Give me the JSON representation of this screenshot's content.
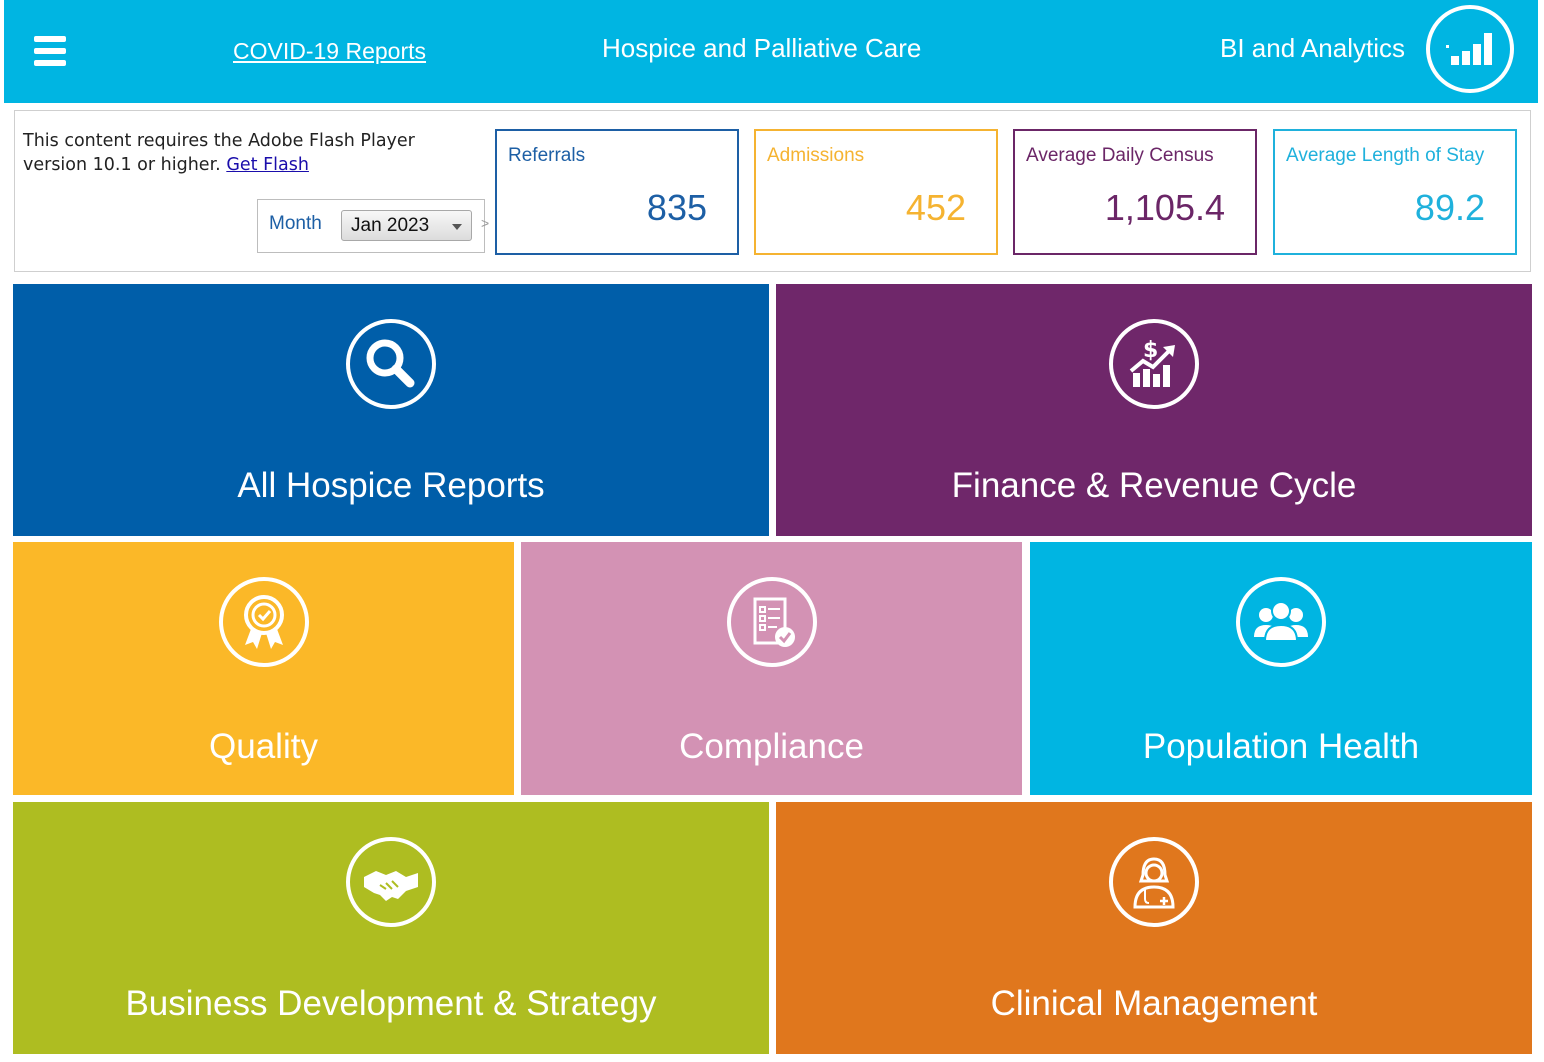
{
  "header": {
    "covid_link": "COVID-19 Reports",
    "title": "Hospice and Palliative Care",
    "bi_label": "BI and Analytics"
  },
  "flash": {
    "message": "This content requires the Adobe Flash Player version 10.1 or higher.",
    "link": "Get Flash"
  },
  "filter": {
    "label": "Month",
    "selected": "Jan 2023"
  },
  "kpis": [
    {
      "label": "Referrals",
      "value": "835",
      "color": "#1d5fa5"
    },
    {
      "label": "Admissions",
      "value": "452",
      "color": "#f5b331"
    },
    {
      "label": "Average Daily Census",
      "value": "1,105.4",
      "color": "#6b2667"
    },
    {
      "label": "Average Length of Stay",
      "value": "89.2",
      "color": "#1fb1dc"
    }
  ],
  "tiles": [
    {
      "label": "All Hospice Reports",
      "icon": "magnifier-icon",
      "color": "#005ea9"
    },
    {
      "label": "Finance & Revenue Cycle",
      "icon": "finance-chart-icon",
      "color": "#6f276a"
    },
    {
      "label": "Quality",
      "icon": "award-ribbon-icon",
      "color": "#fbb828"
    },
    {
      "label": "Compliance",
      "icon": "checklist-icon",
      "color": "#d392b4"
    },
    {
      "label": "Population Health",
      "icon": "people-group-icon",
      "color": "#00b5e2"
    },
    {
      "label": "Business Development & Strategy",
      "icon": "handshake-icon",
      "color": "#aebd21"
    },
    {
      "label": "Clinical Management",
      "icon": "doctor-icon",
      "color": "#e0771d"
    }
  ]
}
